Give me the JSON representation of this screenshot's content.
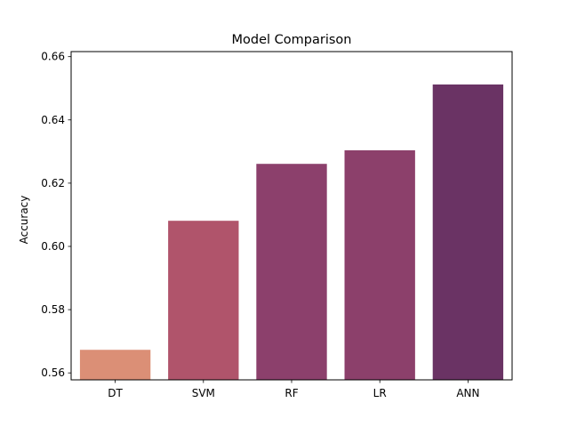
{
  "chart_data": {
    "type": "bar",
    "title": "Model Comparison",
    "xlabel": "",
    "ylabel": "Accuracy",
    "categories": [
      "DT",
      "SVM",
      "RF",
      "LR",
      "ANN"
    ],
    "values": [
      0.5673,
      0.6081,
      0.6261,
      0.6304,
      0.6512
    ],
    "colors": [
      "#db8f76",
      "#b0546b",
      "#8c406c",
      "#8c406b",
      "#6a3364"
    ],
    "ylim": [
      0.5578,
      0.6616
    ],
    "yticks": [
      0.56,
      0.58,
      0.6,
      0.62,
      0.64,
      0.66
    ],
    "ytick_labels": [
      "0.56",
      "0.58",
      "0.60",
      "0.62",
      "0.64",
      "0.66"
    ],
    "grid": false,
    "legend": "none"
  }
}
